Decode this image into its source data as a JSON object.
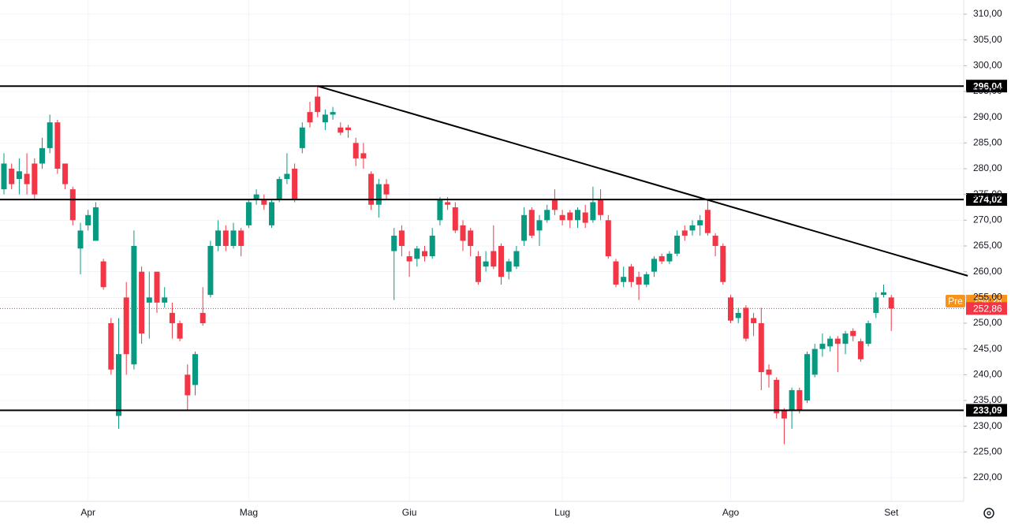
{
  "chart_data": {
    "type": "candlestick",
    "up_color": "#089981",
    "down_color": "#f23645",
    "categories": [
      null,
      null,
      null,
      null,
      null,
      null,
      null,
      null,
      null,
      null,
      null,
      "Apr",
      null,
      null,
      null,
      null,
      null,
      null,
      null,
      null,
      null,
      null,
      null,
      null,
      null,
      null,
      null,
      null,
      null,
      null,
      null,
      null,
      "Mag",
      null,
      null,
      null,
      null,
      null,
      null,
      null,
      null,
      null,
      null,
      null,
      null,
      null,
      null,
      null,
      null,
      null,
      null,
      null,
      null,
      "Giu",
      null,
      null,
      null,
      null,
      null,
      null,
      null,
      null,
      null,
      null,
      null,
      null,
      null,
      null,
      null,
      null,
      null,
      null,
      null,
      "Lug",
      null,
      null,
      null,
      null,
      null,
      null,
      null,
      null,
      null,
      null,
      null,
      null,
      null,
      null,
      null,
      null,
      null,
      null,
      null,
      null,
      null,
      "Ago",
      null,
      null,
      null,
      null,
      null,
      null,
      null,
      null,
      null,
      null,
      null,
      null,
      null,
      null,
      null,
      null,
      null,
      null,
      null,
      null,
      "Set"
    ],
    "open": [
      276,
      280,
      278,
      279,
      281,
      281,
      284,
      289,
      281,
      276,
      264.5,
      269,
      266,
      262,
      250,
      232,
      255,
      242,
      260,
      254,
      260,
      254,
      252,
      250,
      240,
      238,
      252,
      255.5,
      265,
      268,
      265,
      268,
      269,
      274,
      274,
      269,
      274,
      278,
      280,
      284,
      291,
      294,
      289,
      290.5,
      288,
      288,
      285,
      283,
      279,
      273,
      277,
      264,
      268,
      263,
      262.5,
      264,
      263,
      270,
      273.5,
      272.5,
      269,
      268,
      263,
      261,
      264,
      265,
      260,
      261,
      266,
      272,
      268,
      270,
      274,
      271,
      271.5,
      270,
      271.5,
      270,
      274,
      270,
      262,
      258,
      261,
      259,
      257.5,
      260,
      263,
      262,
      263.5,
      268,
      268,
      269,
      272,
      267,
      265,
      255,
      251,
      253,
      251,
      250,
      241,
      239,
      233,
      233,
      237,
      235,
      240,
      245,
      245.5,
      247,
      246,
      248.5,
      246.5,
      246,
      252,
      255.5,
      255
    ],
    "high": [
      283,
      281,
      282,
      283,
      282,
      286,
      290.5,
      289.5,
      281,
      276.5,
      269.5,
      272,
      273.5,
      262.5,
      251,
      251,
      258,
      268,
      261,
      260,
      260,
      257,
      254,
      250.5,
      242,
      244.5,
      257,
      266,
      270,
      269,
      269.5,
      268.5,
      274,
      276,
      275,
      274,
      278.5,
      283,
      281,
      289,
      293,
      296,
      291.5,
      292,
      289,
      288.5,
      286,
      285,
      279.5,
      278,
      278,
      268.5,
      269,
      264,
      265,
      265,
      268.5,
      274.5,
      274.5,
      273.5,
      270,
      268.5,
      264,
      264,
      269,
      265.5,
      262.5,
      265,
      272.5,
      272.5,
      271,
      273,
      276,
      272,
      272,
      272.5,
      273,
      276.5,
      276,
      271,
      262.5,
      261,
      261.5,
      260,
      260,
      263,
      263.5,
      264,
      268,
      269,
      270,
      271,
      274,
      267.5,
      265.5,
      255.5,
      253,
      253.5,
      252,
      253,
      242,
      239.5,
      233.5,
      237.5,
      237.5,
      244.5,
      246,
      248,
      247.5,
      247.5,
      248.5,
      249,
      247,
      250.5,
      256,
      257.5,
      255.5
    ],
    "low": [
      275,
      276,
      275,
      275,
      274,
      280,
      283,
      279,
      276,
      269,
      259.5,
      268,
      266,
      256.5,
      240,
      229.5,
      240,
      241,
      246,
      247,
      252,
      253,
      247,
      246.5,
      233,
      236,
      249.5,
      255,
      264,
      264,
      264.5,
      263,
      268.5,
      273,
      272,
      268.5,
      273.5,
      277,
      273.5,
      283,
      288,
      290,
      287.5,
      289.5,
      286.5,
      286,
      280.5,
      280,
      272,
      270.5,
      274,
      254.5,
      263,
      259,
      261,
      262,
      262.5,
      269,
      272,
      267.5,
      264,
      263,
      257.5,
      260,
      260.5,
      257.5,
      258.5,
      260.5,
      265,
      266.5,
      265,
      269.5,
      271,
      269,
      268.5,
      268.5,
      268.5,
      269.5,
      270,
      262.5,
      257,
      257,
      257,
      254.5,
      257,
      259,
      261.5,
      261.5,
      263,
      266,
      267,
      267,
      267,
      263,
      257.5,
      250,
      250,
      246.5,
      247.5,
      237,
      237.5,
      231.5,
      226.5,
      229.5,
      232.5,
      234.5,
      239.5,
      243.5,
      244.5,
      240.5,
      244,
      246.5,
      242.5,
      245.5,
      251,
      255,
      248.5
    ],
    "close": [
      281,
      277,
      279.5,
      277,
      275,
      284,
      289,
      280,
      277,
      270,
      268,
      271,
      272.5,
      257,
      241,
      244,
      244,
      265,
      248,
      255,
      254,
      255,
      250,
      247,
      236,
      244,
      250,
      265,
      268,
      265,
      268,
      265,
      273.5,
      275,
      273,
      273.5,
      278,
      279,
      274,
      288,
      289,
      291,
      290.5,
      291,
      287,
      287.5,
      282,
      282,
      273,
      277,
      275,
      267,
      265,
      262,
      264.5,
      263,
      267,
      274,
      273,
      268,
      266,
      265,
      258,
      262,
      261,
      259,
      262,
      264,
      271,
      267,
      270,
      272,
      272,
      270,
      270,
      272,
      269.5,
      273.5,
      271,
      263,
      257.5,
      259,
      258,
      257.5,
      259.5,
      262.5,
      262,
      263.5,
      267,
      267,
      269,
      270,
      267.5,
      265,
      258,
      250.5,
      252,
      247,
      250,
      240.5,
      240,
      232.5,
      231.5,
      237,
      233,
      244,
      245,
      246,
      247,
      246,
      248,
      247.5,
      243,
      250,
      255,
      256,
      252.86
    ],
    "ylim": [
      220,
      310
    ],
    "yticks": [
      {
        "value": 220,
        "label": "220,00"
      },
      {
        "value": 225,
        "label": "225,00"
      },
      {
        "value": 230,
        "label": "230,00"
      },
      {
        "value": 235,
        "label": "235,00"
      },
      {
        "value": 240,
        "label": "240,00"
      },
      {
        "value": 245,
        "label": "245,00"
      },
      {
        "value": 250,
        "label": "250,00"
      },
      {
        "value": 255,
        "label": "255,00"
      },
      {
        "value": 260,
        "label": "260,00"
      },
      {
        "value": 265,
        "label": "265,00"
      },
      {
        "value": 270,
        "label": "270,00"
      },
      {
        "value": 275,
        "label": "275,00"
      },
      {
        "value": 280,
        "label": "280,00"
      },
      {
        "value": 285,
        "label": "285,00"
      },
      {
        "value": 290,
        "label": "290,00"
      },
      {
        "value": 295,
        "label": "295,00"
      },
      {
        "value": 300,
        "label": "300,00"
      },
      {
        "value": 305,
        "label": "305,00"
      },
      {
        "value": 310,
        "label": "310,00"
      }
    ],
    "grid": true,
    "hlines": [
      {
        "value": 296.04,
        "label": "296,04"
      },
      {
        "value": 274.02,
        "label": "274,02"
      },
      {
        "value": 233.09,
        "label": "233,09"
      }
    ],
    "trendline": {
      "x": [
        41,
        126
      ],
      "y": [
        296.04,
        259.2
      ]
    },
    "premarket": {
      "tag": "Pre",
      "value": 254.28,
      "label": "254,28",
      "color": "#f7931a"
    },
    "last": {
      "value": 252.86,
      "label": "252,86",
      "color": "#f23645"
    }
  }
}
